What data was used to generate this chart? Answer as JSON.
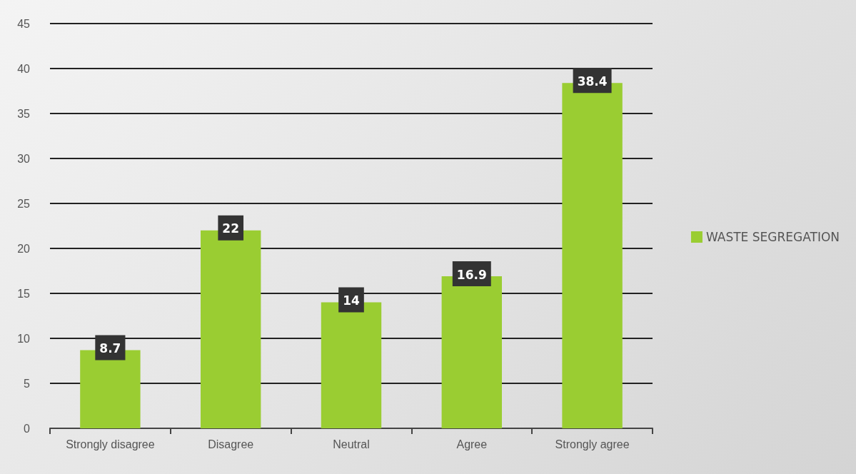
{
  "chart_data": {
    "type": "bar",
    "categories": [
      "Strongly disagree",
      "Disagree",
      "Neutral",
      "Agree",
      "Strongly agree"
    ],
    "series": [
      {
        "name": "WASTE SEGREGATION",
        "color": "#9acd32",
        "values": [
          8.7,
          22,
          14,
          16.9,
          38.4
        ]
      }
    ],
    "ylim": [
      0,
      45
    ],
    "yticks": [
      0,
      5,
      10,
      15,
      20,
      25,
      30,
      35,
      40,
      45
    ],
    "grid": "y",
    "legend": "right",
    "data_labels": true
  }
}
